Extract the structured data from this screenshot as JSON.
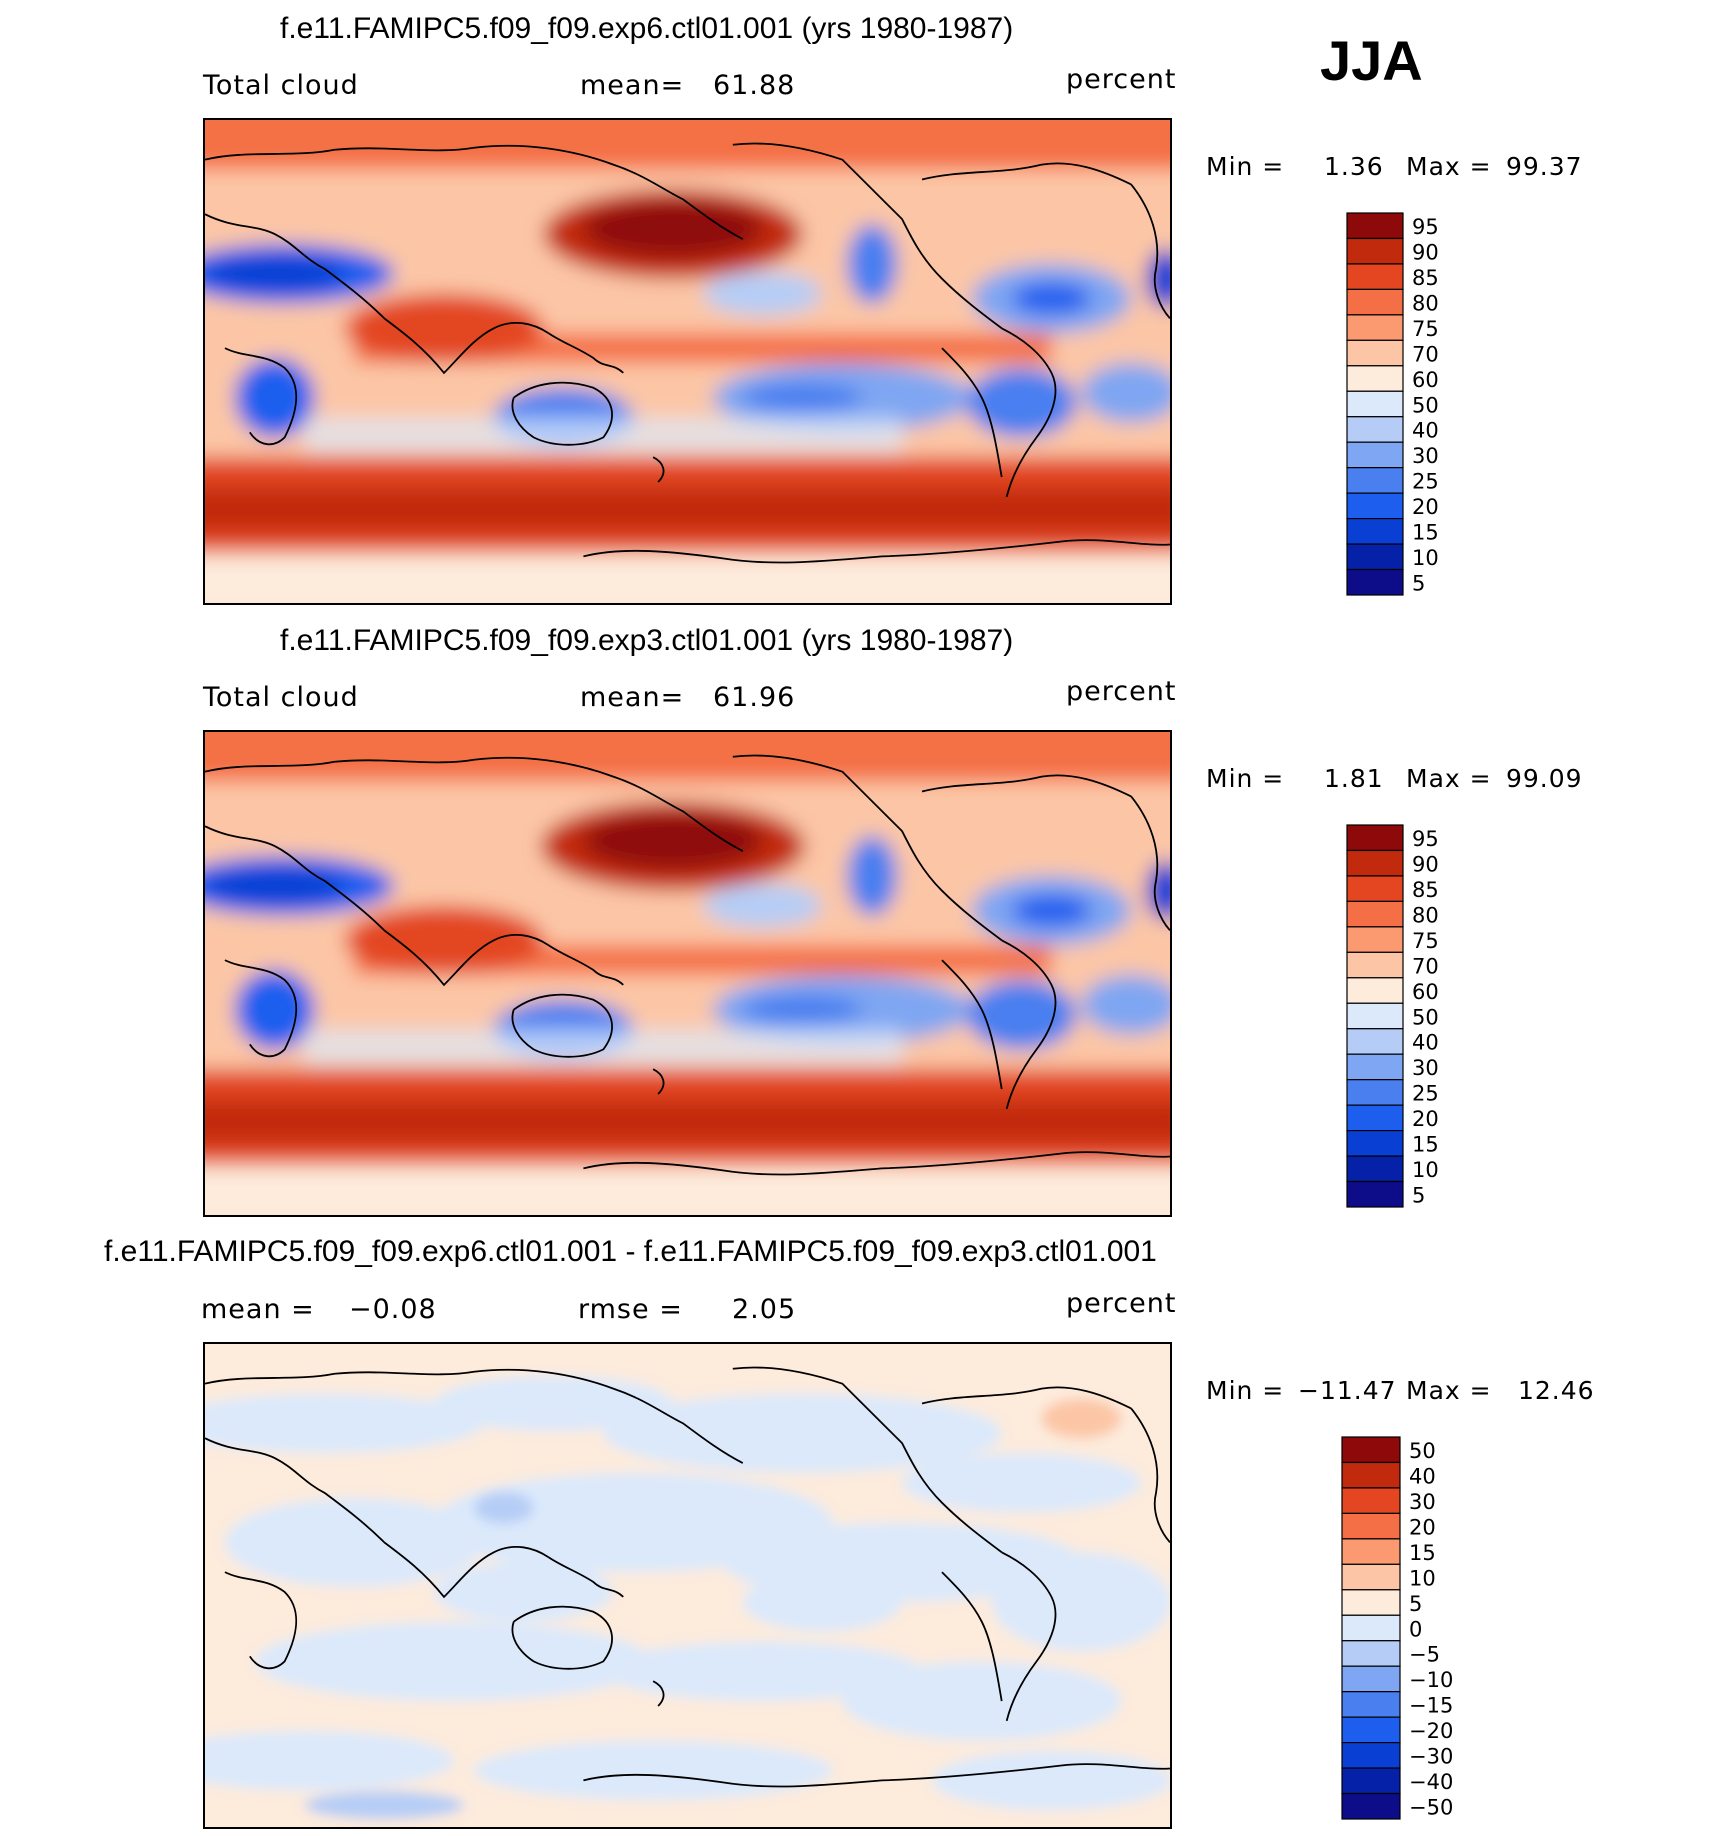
{
  "season": "JJA",
  "colors": {
    "seq_scale": [
      "#0d0d8a",
      "#0521a8",
      "#0a3fd4",
      "#1e5eef",
      "#4a7ff0",
      "#7fa6f2",
      "#b5cdf6",
      "#dbe9fb",
      "#fdebdc",
      "#fcc6a6",
      "#fb9a70",
      "#f46f45",
      "#e34621",
      "#c22a0d",
      "#8e0a0a"
    ],
    "diff_scale": [
      "#0d0d8a",
      "#0521a8",
      "#0a3fd4",
      "#1e5eef",
      "#4a7ff0",
      "#7fa6f2",
      "#b5cdf6",
      "#dbe9fb",
      "#fdebdc",
      "#fcc6a6",
      "#fb9a70",
      "#f46f45",
      "#e34621",
      "#c22a0d",
      "#8e0a0a"
    ]
  },
  "chart_data": [
    {
      "type": "heatmap",
      "title": "f.e11.FAMIPC5.f09_f09.exp6.ctl01.001 (yrs 1980-1987)",
      "variable": "Total cloud",
      "mean_label": "mean=",
      "mean_value": "61.88",
      "units": "percent",
      "min_label": "Min =",
      "min_value": "1.36",
      "max_label": "Max =",
      "max_value": "99.37",
      "colorbar_levels": [
        "95",
        "90",
        "85",
        "80",
        "75",
        "70",
        "60",
        "50",
        "40",
        "30",
        "25",
        "20",
        "15",
        "10",
        "5"
      ],
      "projection": "cylindrical equidistant, centered on Pacific",
      "range": [
        1.36,
        99.37
      ]
    },
    {
      "type": "heatmap",
      "title": "f.e11.FAMIPC5.f09_f09.exp3.ctl01.001 (yrs 1980-1987)",
      "variable": "Total cloud",
      "mean_label": "mean=",
      "mean_value": "61.96",
      "units": "percent",
      "min_label": "Min =",
      "min_value": "1.81",
      "max_label": "Max =",
      "max_value": "99.09",
      "colorbar_levels": [
        "95",
        "90",
        "85",
        "80",
        "75",
        "70",
        "60",
        "50",
        "40",
        "30",
        "25",
        "20",
        "15",
        "10",
        "5"
      ],
      "projection": "cylindrical equidistant, centered on Pacific",
      "range": [
        1.81,
        99.09
      ]
    },
    {
      "type": "heatmap",
      "title": "f.e11.FAMIPC5.f09_f09.exp6.ctl01.001 - f.e11.FAMIPC5.f09_f09.exp3.ctl01.001",
      "mean_label": "mean =",
      "mean_value": "−0.08",
      "rmse_label": "rmse =",
      "rmse_value": "2.05",
      "units": "percent",
      "min_label": "Min =",
      "min_value": "−11.47",
      "max_label": "Max =",
      "max_value": "12.46",
      "colorbar_levels": [
        "50",
        "40",
        "30",
        "20",
        "15",
        "10",
        "5",
        "0",
        "−5",
        "−10",
        "−15",
        "−20",
        "−30",
        "−40",
        "−50"
      ],
      "range": [
        -11.47,
        12.46
      ]
    }
  ]
}
